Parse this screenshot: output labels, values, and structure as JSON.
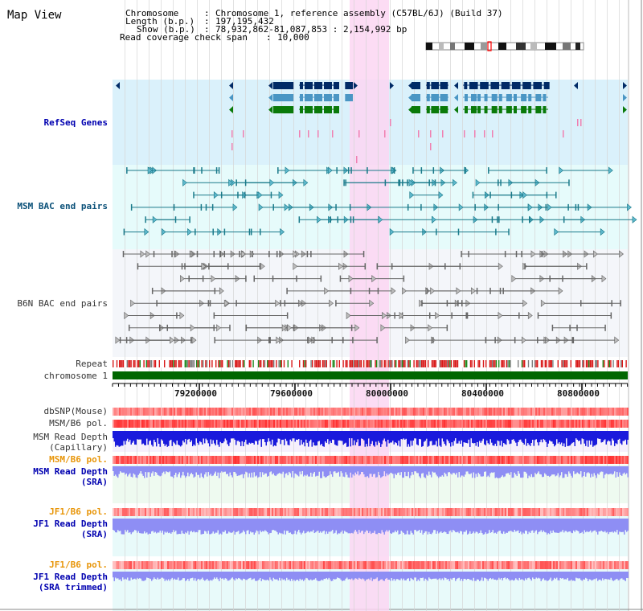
{
  "app": {
    "title": "Map View"
  },
  "header": {
    "chromosome_label": "Chromosome",
    "chromosome_value": "Chromosome 1, reference assembly (C57BL/6J) (Build 37)",
    "length_label": "Length (b.p.)",
    "length_value": "197,195,432",
    "show_label": "Show (b.p.)",
    "show_value": "78,932,862-81,087,853 : 2,154,992 bp",
    "span_label": "Read coverage check span",
    "span_value": "10,000",
    "sep": ":"
  },
  "tracks": {
    "refseq": "RefSeq Genes",
    "msm_bac": "MSM BAC end pairs",
    "b6n_bac": "B6N BAC end pairs",
    "repeat": "Repeat",
    "chromosome": "chromosome 1",
    "dbsnp": "dbSNP(Mouse)",
    "msm_b6_pol": "MSM/B6 pol.",
    "msm_depth_cap_1": "MSM Read Depth",
    "msm_depth_cap_2": "(Capillary)",
    "msm_b6_pol2": "MSM/B6 pol.",
    "msm_depth_sra_1": "MSM Read Depth",
    "msm_depth_sra_2": "(SRA)",
    "jf1_b6_pol": "JF1/B6 pol.",
    "jf1_depth_sra_1": "JF1 Read Depth",
    "jf1_depth_sra_2": "(SRA)",
    "jf1_b6_pol2": "JF1/B6 pol.",
    "jf1_depth_trim_1": "JF1 Read Depth",
    "jf1_depth_trim_2": "(SRA trimmed)"
  },
  "axis": {
    "ticks": [
      "79200000",
      "79600000",
      "80000000",
      "80400000",
      "80800000"
    ]
  },
  "colors": {
    "refseq_bg": "#daf1fb",
    "msm_bg": "#e6fbfb",
    "b6n_bg": "#f4f6fa",
    "highlight": "#fbd6f2",
    "gene_navy": "#002a66",
    "gene_steel": "#4a96c4",
    "gene_green": "#0a7a0a",
    "msm_pair": "#1a7a8a",
    "b6n_pair": "#666666",
    "chromosome": "#006600",
    "depth_blue": "#1a1adc",
    "depth_lav": "#8e8ef4",
    "pol_red": "#f04040"
  }
}
